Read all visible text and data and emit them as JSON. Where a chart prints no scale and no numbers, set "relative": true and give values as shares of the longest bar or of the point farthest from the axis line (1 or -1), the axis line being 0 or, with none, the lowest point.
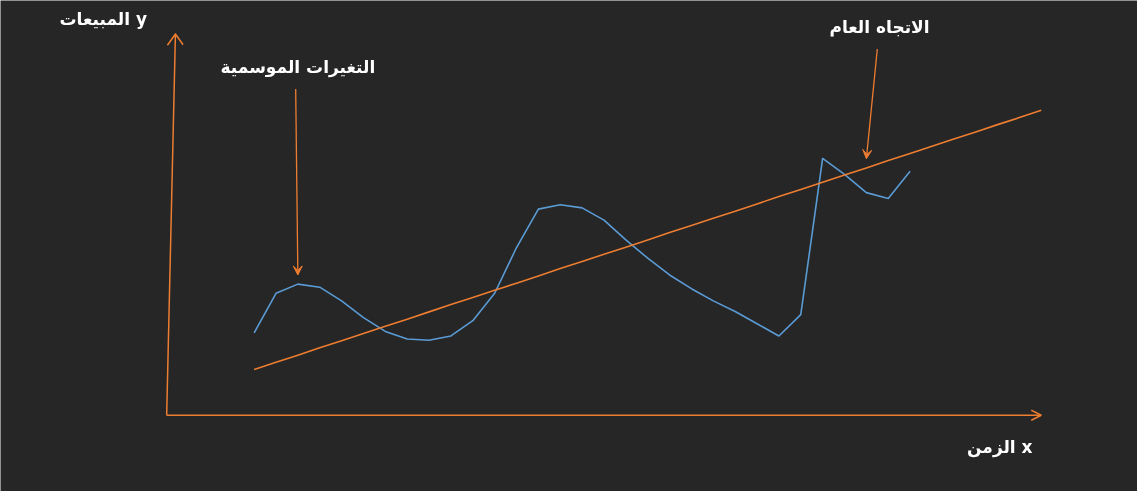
{
  "chart_data": {
    "type": "line",
    "relative": true,
    "xlabel": "الزمن x",
    "grid": false,
    "marker": "none",
    "line_style": "solid",
    "annotations": [
      "المبيعات y",
      "التغيرات الموسمية",
      "الاتجاه العام"
    ],
    "categories": [
      null,
      null,
      null,
      null,
      null,
      null,
      null,
      null,
      null,
      null,
      null,
      null,
      null,
      null,
      null,
      null,
      null,
      null,
      null,
      null,
      null,
      null,
      null,
      null,
      null,
      null,
      null,
      null,
      null,
      null,
      null,
      null,
      null,
      null,
      null,
      null,
      null
    ],
    "series": [
      {
        "color": "#5b9bd5",
        "values": [
          0.27,
          0.4,
          0.43,
          0.42,
          0.375,
          0.32,
          0.275,
          0.25,
          0.246,
          0.26,
          0.31,
          0.4,
          0.55,
          0.676,
          0.69,
          0.68,
          0.64,
          0.575,
          0.515,
          0.46,
          0.415,
          0.375,
          0.34,
          0.3,
          0.26,
          0.33,
          0.842,
          0.79,
          0.73,
          0.711,
          0.8,
          null,
          null,
          null,
          null,
          null,
          null
        ]
      },
      {
        "color": "#ed7d31",
        "values": [
          0.15,
          0.174,
          0.197,
          0.221,
          0.244,
          0.268,
          0.292,
          0.315,
          0.339,
          0.363,
          0.386,
          0.41,
          0.433,
          0.457,
          0.481,
          0.504,
          0.528,
          0.551,
          0.575,
          0.599,
          0.622,
          0.646,
          0.669,
          0.693,
          0.717,
          0.74,
          0.764,
          0.788,
          0.811,
          0.835,
          0.858,
          0.882,
          0.906,
          0.929,
          0.953,
          0.976,
          1.0
        ]
      }
    ]
  }
}
